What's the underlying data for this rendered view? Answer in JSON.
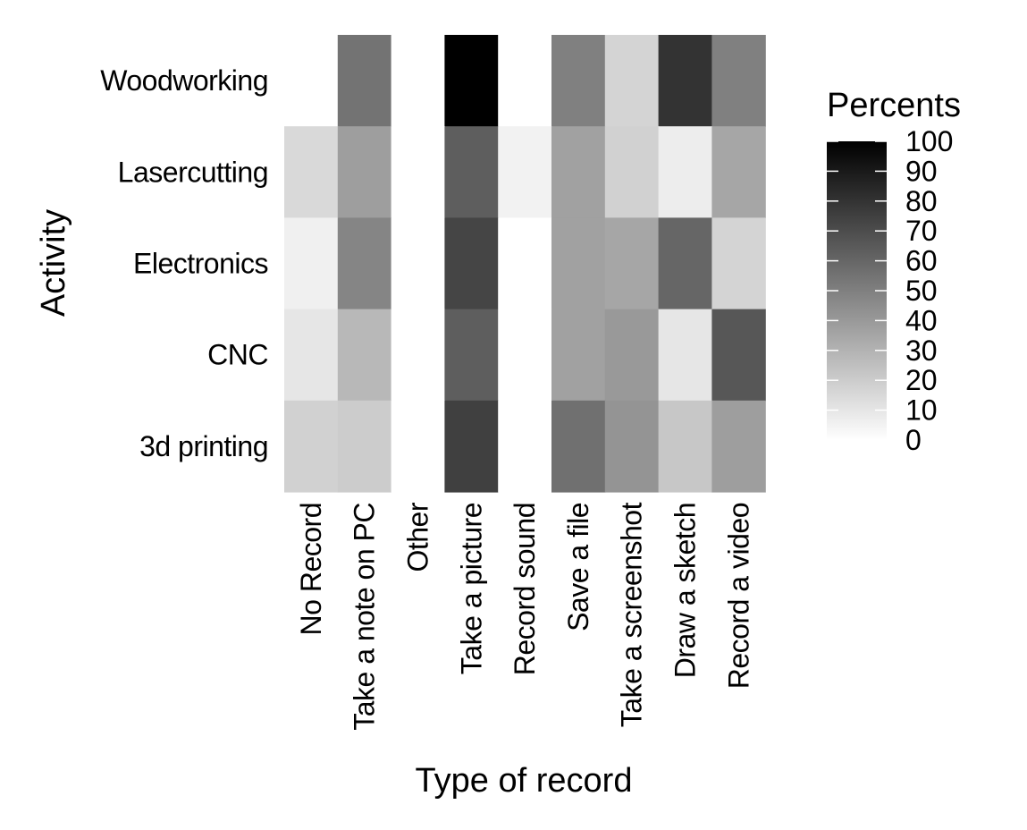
{
  "chart_data": {
    "type": "heatmap",
    "xlabel": "Type of record",
    "ylabel": "Activity",
    "x_categories": [
      "No Record",
      "Take a note on PC",
      "Other",
      "Take a picture",
      "Record sound",
      "Save a file",
      "Take a screenshot",
      "Draw a sketch",
      "Record a video"
    ],
    "y_categories": [
      "Woodworking",
      "Lasercutting",
      "Electronics",
      "CNC",
      "3d printing"
    ],
    "values": [
      [
        0,
        55,
        0,
        100,
        0,
        50,
        17,
        80,
        50
      ],
      [
        15,
        38,
        0,
        63,
        5,
        37,
        18,
        7,
        35
      ],
      [
        6,
        48,
        0,
        73,
        0,
        37,
        35,
        60,
        17
      ],
      [
        10,
        28,
        0,
        63,
        0,
        37,
        40,
        10,
        66
      ],
      [
        18,
        20,
        0,
        75,
        0,
        56,
        42,
        22,
        38
      ]
    ],
    "colorscale": {
      "low_color": "#ffffff",
      "high_color": "#000000",
      "min": 0,
      "max": 100
    },
    "legend": {
      "title": "Percents",
      "ticks": [
        0,
        10,
        20,
        30,
        40,
        50,
        60,
        70,
        80,
        90,
        100
      ],
      "position": "right"
    },
    "grid": false
  }
}
